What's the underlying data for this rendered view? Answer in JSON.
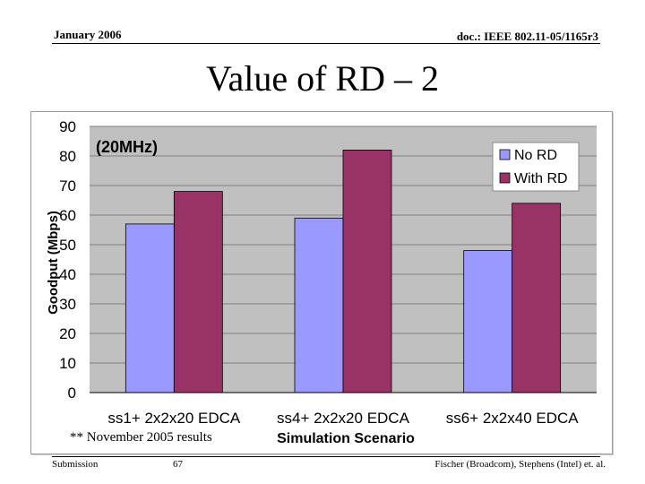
{
  "header": {
    "date": "January 2006",
    "doc_id": "doc.: IEEE 802.11-05/1165r3"
  },
  "slide": {
    "title": "Value of RD – 2",
    "note": "** November 2005 results"
  },
  "footer": {
    "left": "Submission",
    "page": "67",
    "right": "Fischer (Broadcom), Stephens (Intel) et. al."
  },
  "colors": {
    "series_no_rd": "#9999ff",
    "series_with_rd": "#993366",
    "plot_bg": "#c0c0c0"
  },
  "chart_data": {
    "type": "bar",
    "annotation": "(20MHz)",
    "xlabel": "Simulation Scenario",
    "ylabel": "Goodput (Mbps)",
    "categories": [
      "ss1+ 2x2x20 EDCA",
      "ss4+ 2x2x20 EDCA",
      "ss6+ 2x2x40 EDCA"
    ],
    "series": [
      {
        "name": "No RD",
        "values": [
          57,
          59,
          48
        ]
      },
      {
        "name": "With RD",
        "values": [
          68,
          82,
          64
        ]
      }
    ],
    "ylim": [
      0,
      90
    ],
    "yticks": [
      0,
      10,
      20,
      30,
      40,
      50,
      60,
      70,
      80,
      90
    ],
    "grid": true,
    "legend_position": "top-right"
  }
}
